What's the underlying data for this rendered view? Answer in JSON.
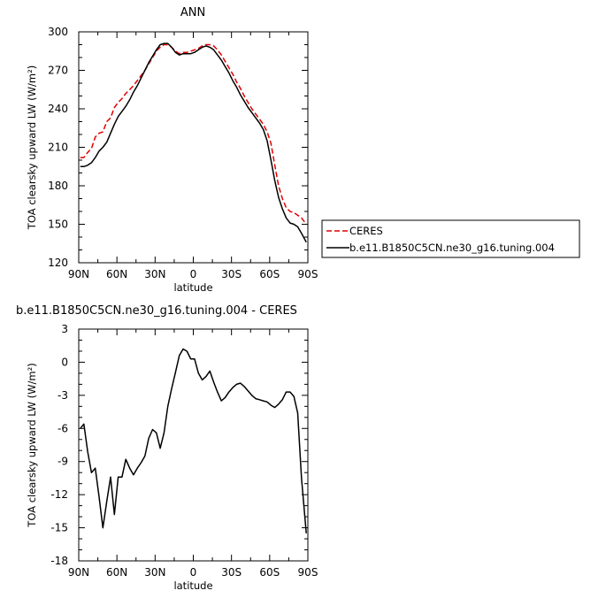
{
  "chart_data": [
    {
      "type": "line",
      "title": "ANN",
      "xlabel": "latitude",
      "ylabel": "TOA clearsky upward LW (W/m²)",
      "xlim": [
        90,
        -90
      ],
      "ylim": [
        120,
        300
      ],
      "xticks": [
        {
          "value": 90,
          "label": "90N"
        },
        {
          "value": 60,
          "label": "60N"
        },
        {
          "value": 30,
          "label": "30N"
        },
        {
          "value": 0,
          "label": "0"
        },
        {
          "value": -30,
          "label": "30S"
        },
        {
          "value": -60,
          "label": "60S"
        },
        {
          "value": -90,
          "label": "90S"
        }
      ],
      "yticks": [
        {
          "value": 120,
          "label": "120"
        },
        {
          "value": 150,
          "label": "150"
        },
        {
          "value": 180,
          "label": "180"
        },
        {
          "value": 210,
          "label": "210"
        },
        {
          "value": 240,
          "label": "240"
        },
        {
          "value": 270,
          "label": "270"
        },
        {
          "value": 300,
          "label": "300"
        }
      ],
      "legend": {
        "position": "right",
        "entries": [
          {
            "label": "CERES",
            "color": "#e00000",
            "style": "dashed"
          },
          {
            "label": "b.e11.B1850C5CN.ne30_g16.tuning.004",
            "color": "#000000",
            "style": "solid"
          }
        ]
      },
      "series": [
        {
          "name": "CERES",
          "color": "#e00000",
          "style": "dashed",
          "x": [
            88.75,
            86,
            83,
            80,
            77,
            74,
            71,
            68,
            65,
            62,
            59,
            56,
            53,
            50,
            47,
            44,
            41,
            38,
            35,
            32,
            29,
            26,
            23,
            20,
            17,
            14,
            11,
            8,
            5,
            2,
            -1,
            -4,
            -7,
            -10,
            -13,
            -16,
            -19,
            -22,
            -25,
            -28,
            -31,
            -34,
            -37,
            -40,
            -43,
            -46,
            -49,
            -52,
            -55,
            -58,
            -61,
            -64,
            -67,
            -70,
            -73,
            -76,
            -79,
            -82,
            -85,
            -88.75
          ],
          "y": [
            202,
            202,
            206,
            209,
            218,
            221,
            222,
            230,
            233,
            241,
            245,
            248,
            252,
            255,
            258,
            262,
            266,
            270,
            275,
            280,
            285,
            288,
            290,
            290,
            288,
            285,
            283,
            284,
            284,
            285,
            286,
            287,
            289,
            290,
            290,
            289,
            286,
            282,
            277,
            272,
            267,
            261,
            256,
            250,
            245,
            240,
            236,
            232,
            228,
            222,
            213,
            196,
            180,
            170,
            163,
            160,
            159,
            157,
            155,
            150
          ]
        },
        {
          "name": "b.e11.B1850C5CN.ne30_g16.tuning.004",
          "color": "#000000",
          "style": "solid",
          "x": [
            88.75,
            86,
            83,
            80,
            77,
            74,
            71,
            68,
            65,
            62,
            59,
            56,
            53,
            50,
            47,
            44,
            41,
            38,
            35,
            32,
            29,
            26,
            23,
            20,
            17,
            14,
            11,
            8,
            5,
            2,
            -1,
            -4,
            -7,
            -10,
            -13,
            -16,
            -19,
            -22,
            -25,
            -28,
            -31,
            -34,
            -37,
            -40,
            -43,
            -46,
            -49,
            -52,
            -55,
            -58,
            -61,
            -64,
            -67,
            -70,
            -73,
            -76,
            -79,
            -82,
            -85,
            -88.75
          ],
          "y": [
            195,
            195,
            196,
            198,
            202,
            207,
            210,
            214,
            221,
            228,
            234,
            238,
            242,
            247,
            253,
            258,
            264,
            270,
            276,
            281,
            286,
            290,
            291,
            291,
            288,
            284,
            282,
            283,
            283,
            283,
            284,
            286,
            288,
            289,
            288,
            286,
            282,
            278,
            273,
            268,
            262,
            257,
            251,
            246,
            241,
            237,
            233,
            229,
            224,
            215,
            200,
            184,
            171,
            162,
            155,
            151,
            150,
            148,
            143,
            136
          ]
        }
      ]
    },
    {
      "type": "line",
      "title": "b.e11.B1850C5CN.ne30_g16.tuning.004 - CERES",
      "xlabel": "latitude",
      "ylabel": "TOA clearsky upward LW (W/m²)",
      "xlim": [
        90,
        -90
      ],
      "ylim": [
        -18,
        3
      ],
      "xticks": [
        {
          "value": 90,
          "label": "90N"
        },
        {
          "value": 60,
          "label": "60N"
        },
        {
          "value": 30,
          "label": "30N"
        },
        {
          "value": 0,
          "label": "0"
        },
        {
          "value": -30,
          "label": "30S"
        },
        {
          "value": -60,
          "label": "60S"
        },
        {
          "value": -90,
          "label": "90S"
        }
      ],
      "yticks": [
        {
          "value": 3,
          "label": "3"
        },
        {
          "value": 0,
          "label": "0"
        },
        {
          "value": -3,
          "label": "-3"
        },
        {
          "value": -6,
          "label": "-6"
        },
        {
          "value": -9,
          "label": "-9"
        },
        {
          "value": -12,
          "label": "-12"
        },
        {
          "value": -15,
          "label": "-15"
        },
        {
          "value": -18,
          "label": "-18"
        }
      ],
      "series": [
        {
          "color": "#000000",
          "style": "solid",
          "x": [
            88.75,
            86,
            83,
            80,
            77,
            74,
            71,
            68,
            65,
            62,
            59,
            56,
            53,
            50,
            47,
            44,
            41,
            38,
            35,
            32,
            29,
            26,
            23,
            20,
            17,
            14,
            11,
            8,
            5,
            2,
            -1,
            -4,
            -7,
            -10,
            -13,
            -16,
            -19,
            -22,
            -25,
            -28,
            -31,
            -34,
            -37,
            -40,
            -43,
            -46,
            -49,
            -52,
            -55,
            -58,
            -61,
            -64,
            -67,
            -70,
            -73,
            -76,
            -79,
            -82,
            -85,
            -88.75
          ],
          "y": [
            -6,
            -5.6,
            -8.1,
            -10,
            -9.6,
            -12.2,
            -15,
            -12.6,
            -10.4,
            -13.8,
            -10.4,
            -10.4,
            -8.8,
            -9.6,
            -10.2,
            -9.6,
            -9.1,
            -8.5,
            -6.9,
            -6.1,
            -6.4,
            -7.8,
            -6.4,
            -4,
            -2.4,
            -0.9,
            0.6,
            1.2,
            1,
            0.3,
            0.3,
            -1,
            -1.6,
            -1.3,
            -0.8,
            -1.8,
            -2.7,
            -3.5,
            -3.2,
            -2.7,
            -2.3,
            -2,
            -1.9,
            -2.2,
            -2.6,
            -3,
            -3.3,
            -3.4,
            -3.5,
            -3.6,
            -3.9,
            -4.1,
            -3.8,
            -3.4,
            -2.7,
            -2.7,
            -3.1,
            -4.6,
            -10.5,
            -15.5
          ]
        }
      ]
    }
  ]
}
